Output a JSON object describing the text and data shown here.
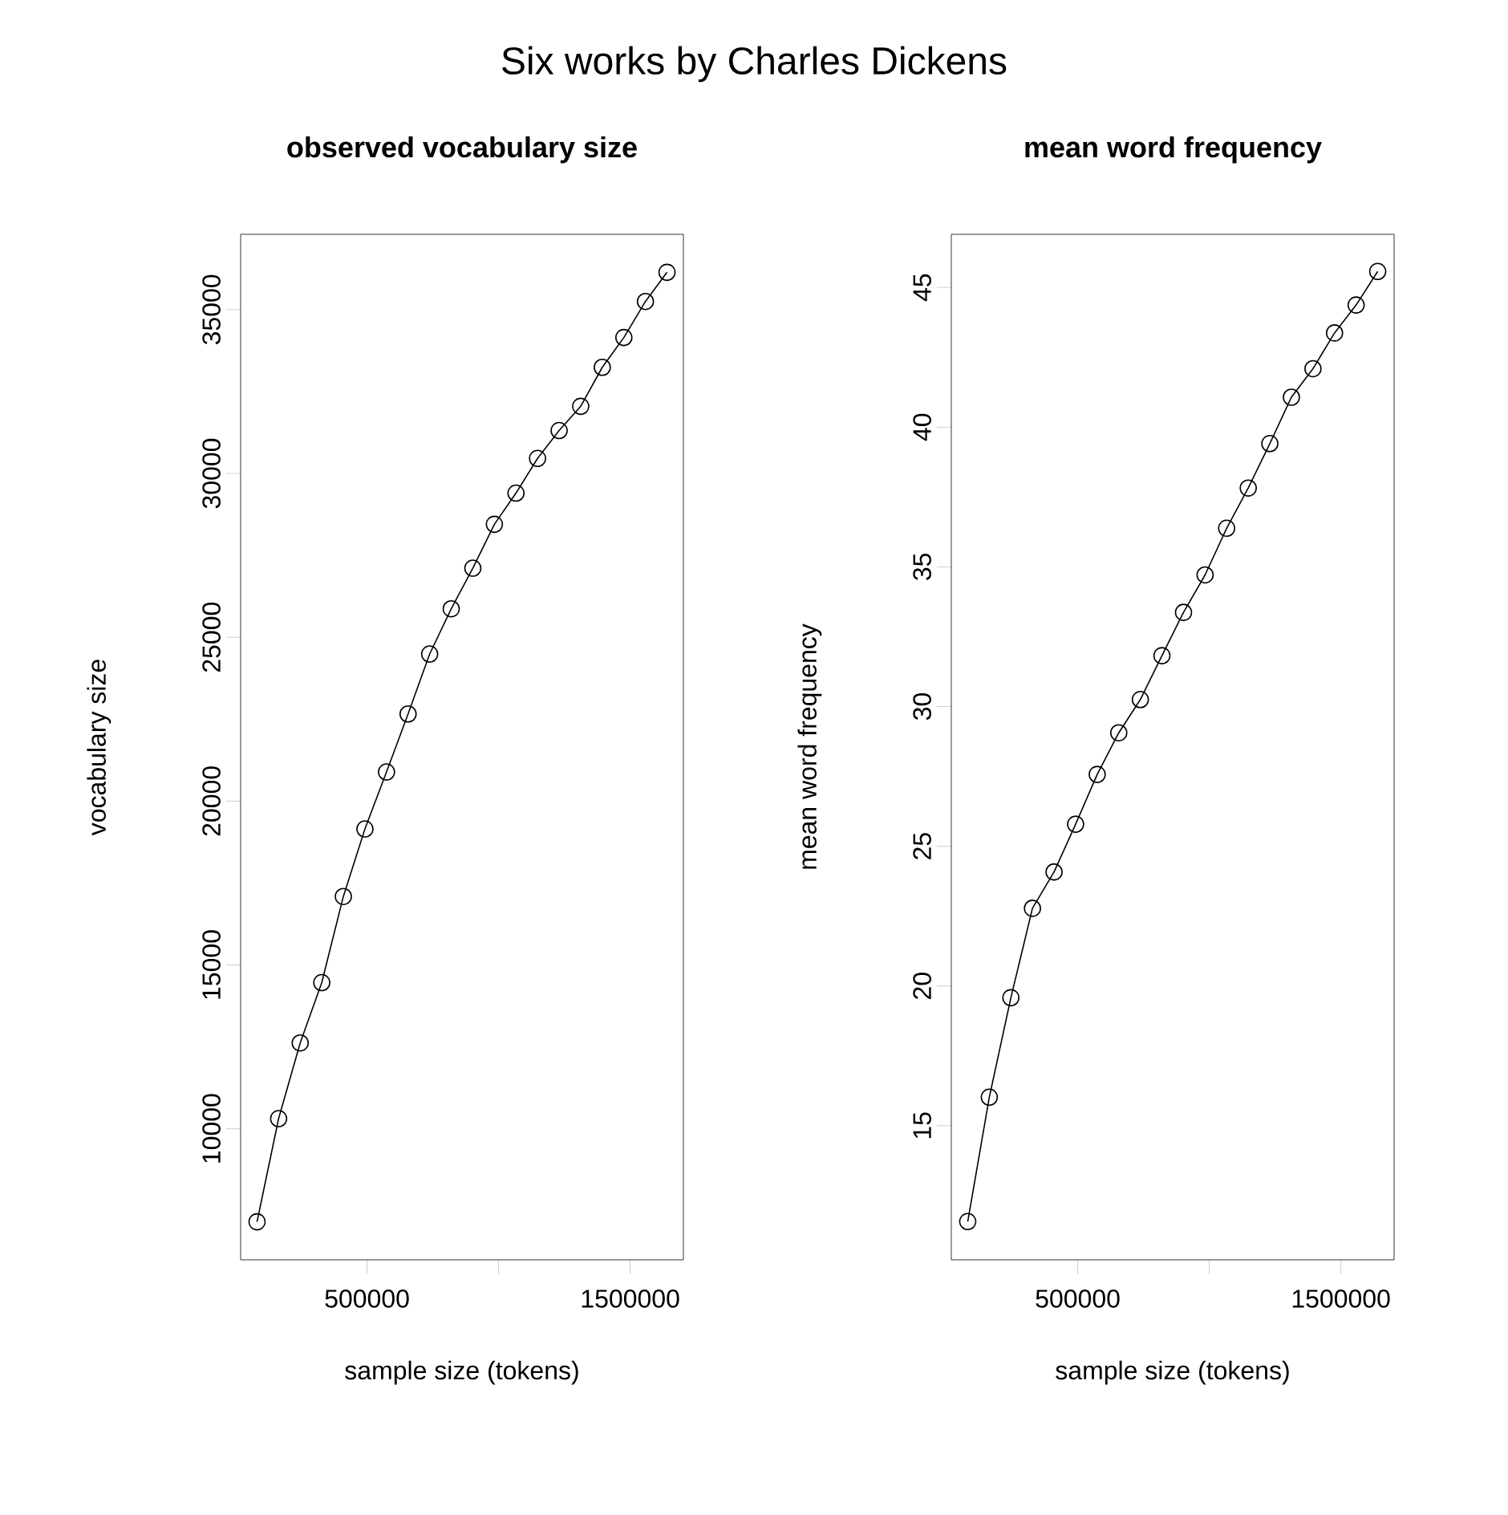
{
  "chart_data": [
    {
      "type": "line",
      "title": "Six works by Charles Dickens",
      "subtitle": "observed vocabulary size",
      "xlabel": "sample size (tokens)",
      "ylabel": "vocabulary size",
      "marker": "circle",
      "x": [
        82000,
        164000,
        246000,
        328000,
        410000,
        492000,
        574000,
        656000,
        738000,
        820000,
        902000,
        984000,
        1066000,
        1148000,
        1230000,
        1312000,
        1394000,
        1476000,
        1558000,
        1640000
      ],
      "values": [
        7160,
        10310,
        12620,
        14460,
        17090,
        19150,
        20890,
        22660,
        24490,
        25870,
        27110,
        28450,
        29400,
        30460,
        31310,
        32050,
        33240,
        34150,
        35250,
        36140
      ],
      "xlim": [
        19680,
        1702320
      ],
      "ylim": [
        6000,
        37300
      ],
      "xticks": [
        500000,
        {
          "value": 1000000,
          "label": null
        },
        1500000
      ],
      "yticks": [
        10000,
        15000,
        20000,
        25000,
        30000,
        35000
      ]
    },
    {
      "type": "line",
      "subtitle": "mean word frequency",
      "xlabel": "sample size (tokens)",
      "ylabel": "mean word frequency",
      "marker": "circle",
      "x": [
        82000,
        164000,
        246000,
        328000,
        410000,
        492000,
        574000,
        656000,
        738000,
        820000,
        902000,
        984000,
        1066000,
        1148000,
        1230000,
        1312000,
        1394000,
        1476000,
        1558000,
        1640000
      ],
      "values": [
        11.57,
        16.02,
        19.58,
        22.78,
        24.08,
        25.79,
        27.57,
        29.06,
        30.25,
        31.82,
        33.37,
        34.71,
        36.38,
        37.82,
        39.41,
        41.07,
        42.09,
        43.37,
        44.37,
        45.57
      ],
      "xlim": [
        19680,
        1702320
      ],
      "ylim": [
        10.2,
        46.9
      ],
      "xticks": [
        500000,
        {
          "value": 1000000,
          "label": null
        },
        1500000
      ],
      "yticks": [
        15,
        20,
        25,
        30,
        35,
        40,
        45
      ]
    }
  ]
}
